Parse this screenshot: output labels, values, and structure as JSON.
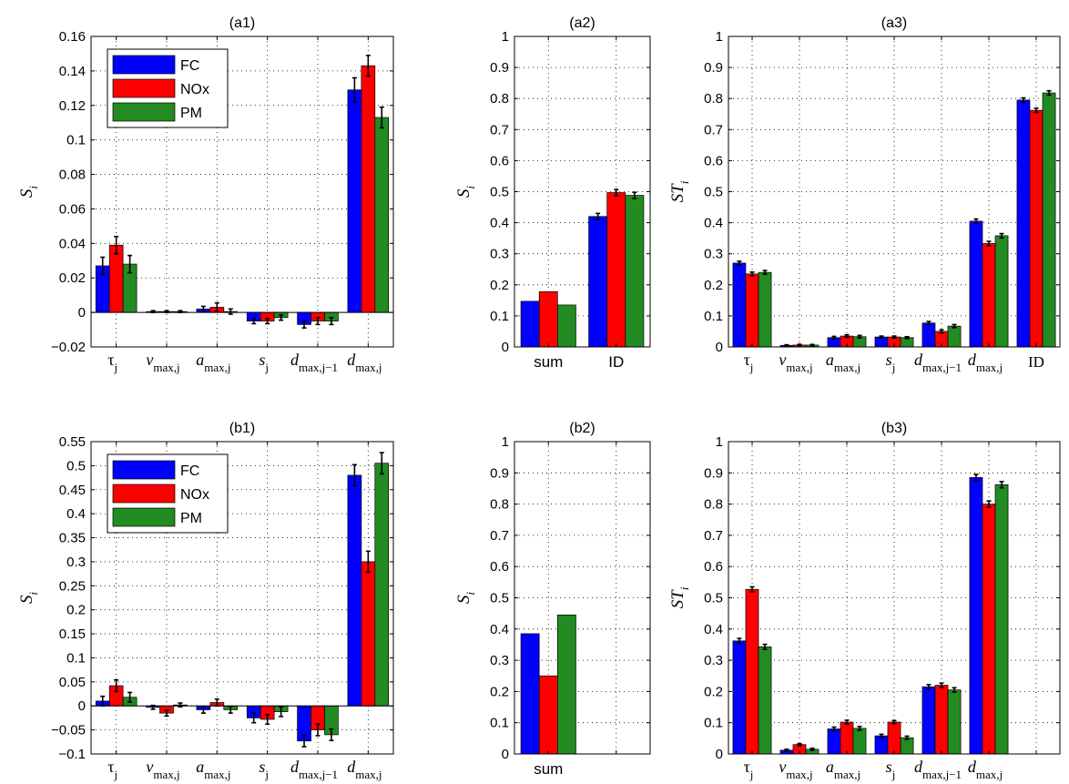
{
  "colors": {
    "FC": "#0000ff",
    "NOx": "#ff0000",
    "PM": "#228b22",
    "error": "#000000"
  },
  "chart_data": [
    {
      "id": "a1",
      "type": "bar",
      "title": "(a1)",
      "ylabel_main": "S",
      "ylabel_sub": "i",
      "ylim": [
        -0.02,
        0.16
      ],
      "yticks": [
        -0.02,
        0,
        0.02,
        0.04,
        0.06,
        0.08,
        0.1,
        0.12,
        0.14,
        0.16
      ],
      "ytick_labels": [
        "−0.02",
        "0",
        "0.02",
        "0.04",
        "0.06",
        "0.08",
        "0.1",
        "0.12",
        "0.14",
        "0.16"
      ],
      "grid": true,
      "legend": {
        "placement": "top-left",
        "entries": [
          "FC",
          "NOx",
          "PM"
        ]
      },
      "categories": [
        {
          "main": "τ",
          "sub": "j",
          "greek": true
        },
        {
          "main": "v",
          "sub": "max,j"
        },
        {
          "main": "a",
          "sub": "max,j"
        },
        {
          "main": "s",
          "sub": "j"
        },
        {
          "main": "d",
          "sub": "max,j−1"
        },
        {
          "main": "d",
          "sub": "max,j"
        }
      ],
      "series": [
        {
          "name": "FC",
          "values": [
            0.027,
            0.0005,
            0.002,
            -0.005,
            -0.007,
            0.129
          ],
          "errors": [
            0.005,
            0.0005,
            0.0015,
            0.0015,
            0.002,
            0.007
          ]
        },
        {
          "name": "NOx",
          "values": [
            0.039,
            0.0005,
            0.003,
            -0.005,
            -0.005,
            0.143
          ],
          "errors": [
            0.005,
            0.0005,
            0.0025,
            0.0015,
            0.002,
            0.006
          ]
        },
        {
          "name": "PM",
          "values": [
            0.028,
            0.0005,
            0.0005,
            -0.003,
            -0.005,
            0.113
          ],
          "errors": [
            0.005,
            0.0005,
            0.0015,
            0.0015,
            0.002,
            0.006
          ]
        }
      ]
    },
    {
      "id": "a2",
      "type": "bar",
      "title": "(a2)",
      "ylabel_main": "S",
      "ylabel_sub": "i",
      "ylim": [
        0,
        1
      ],
      "yticks": [
        0,
        0.1,
        0.2,
        0.3,
        0.4,
        0.5,
        0.6,
        0.7,
        0.8,
        0.9,
        1
      ],
      "ytick_labels": [
        "0",
        "0.1",
        "0.2",
        "0.3",
        "0.4",
        "0.5",
        "0.6",
        "0.7",
        "0.8",
        "0.9",
        "1"
      ],
      "grid": true,
      "categories": [
        {
          "text": "sum"
        },
        {
          "text": "ID"
        }
      ],
      "series": [
        {
          "name": "FC",
          "values": [
            0.147,
            0.42
          ],
          "errors": [
            null,
            0.01
          ]
        },
        {
          "name": "NOx",
          "values": [
            0.178,
            0.497
          ],
          "errors": [
            null,
            0.01
          ]
        },
        {
          "name": "PM",
          "values": [
            0.135,
            0.488
          ],
          "errors": [
            null,
            0.01
          ]
        }
      ]
    },
    {
      "id": "a3",
      "type": "bar",
      "title": "(a3)",
      "ylabel_main": "ST",
      "ylabel_sub": "i",
      "ylim": [
        0,
        1
      ],
      "yticks": [
        0,
        0.1,
        0.2,
        0.3,
        0.4,
        0.5,
        0.6,
        0.7,
        0.8,
        0.9,
        1
      ],
      "ytick_labels": [
        "0",
        "0.1",
        "0.2",
        "0.3",
        "0.4",
        "0.5",
        "0.6",
        "0.7",
        "0.8",
        "0.9",
        "1"
      ],
      "grid": true,
      "categories": [
        {
          "main": "τ",
          "sub": "j",
          "greek": true
        },
        {
          "main": "v",
          "sub": "max,j"
        },
        {
          "main": "a",
          "sub": "max,j"
        },
        {
          "main": "s",
          "sub": "j"
        },
        {
          "main": "d",
          "sub": "max,j−1"
        },
        {
          "main": "d",
          "sub": "max,j"
        },
        {
          "text": "ID",
          "serif": true
        }
      ],
      "series": [
        {
          "name": "FC",
          "values": [
            0.27,
            0.005,
            0.03,
            0.032,
            0.077,
            0.405,
            0.795
          ],
          "errors": [
            0.006,
            0.002,
            0.004,
            0.003,
            0.005,
            0.007,
            0.007
          ]
        },
        {
          "name": "NOx",
          "values": [
            0.235,
            0.006,
            0.035,
            0.032,
            0.05,
            0.333,
            0.762
          ],
          "errors": [
            0.006,
            0.002,
            0.004,
            0.003,
            0.005,
            0.007,
            0.007
          ]
        },
        {
          "name": "PM",
          "values": [
            0.24,
            0.006,
            0.033,
            0.03,
            0.067,
            0.358,
            0.818
          ],
          "errors": [
            0.006,
            0.002,
            0.004,
            0.003,
            0.005,
            0.007,
            0.007
          ]
        }
      ]
    },
    {
      "id": "b1",
      "type": "bar",
      "title": "(b1)",
      "ylabel_main": "S",
      "ylabel_sub": "i",
      "ylim": [
        -0.1,
        0.55
      ],
      "yticks": [
        -0.1,
        -0.05,
        0,
        0.05,
        0.1,
        0.15,
        0.2,
        0.25,
        0.3,
        0.35,
        0.4,
        0.45,
        0.5,
        0.55
      ],
      "ytick_labels": [
        "−0.1",
        "−0.05",
        "0",
        "0.05",
        "0.1",
        "0.15",
        "0.2",
        "0.25",
        "0.3",
        "0.35",
        "0.4",
        "0.45",
        "0.5",
        "0.55"
      ],
      "grid": true,
      "legend": {
        "placement": "top-left",
        "entries": [
          "FC",
          "NOx",
          "PM"
        ]
      },
      "categories": [
        {
          "main": "τ",
          "sub": "j",
          "greek": true
        },
        {
          "main": "v",
          "sub": "max,j"
        },
        {
          "main": "a",
          "sub": "max,j"
        },
        {
          "main": "s",
          "sub": "j"
        },
        {
          "main": "d",
          "sub": "max,j−1"
        },
        {
          "main": "d",
          "sub": "max,j"
        }
      ],
      "series": [
        {
          "name": "FC",
          "values": [
            0.01,
            -0.003,
            -0.008,
            -0.025,
            -0.073,
            0.48
          ],
          "errors": [
            0.01,
            0.004,
            0.007,
            0.01,
            0.012,
            0.022
          ]
        },
        {
          "name": "NOx",
          "values": [
            0.042,
            -0.015,
            0.007,
            -0.028,
            -0.05,
            0.3
          ],
          "errors": [
            0.012,
            0.006,
            0.007,
            0.01,
            0.012,
            0.022
          ]
        },
        {
          "name": "PM",
          "values": [
            0.018,
            0.002,
            -0.008,
            -0.012,
            -0.06,
            0.505
          ],
          "errors": [
            0.01,
            0.004,
            0.007,
            0.01,
            0.012,
            0.022
          ]
        }
      ]
    },
    {
      "id": "b2",
      "type": "bar",
      "title": "(b2)",
      "ylabel_main": "S",
      "ylabel_sub": "i",
      "ylim": [
        0,
        1
      ],
      "yticks": [
        0,
        0.1,
        0.2,
        0.3,
        0.4,
        0.5,
        0.6,
        0.7,
        0.8,
        0.9,
        1
      ],
      "ytick_labels": [
        "0",
        "0.1",
        "0.2",
        "0.3",
        "0.4",
        "0.5",
        "0.6",
        "0.7",
        "0.8",
        "0.9",
        "1"
      ],
      "grid": true,
      "categories": [
        {
          "text": "sum"
        },
        {
          "text": ""
        }
      ],
      "series": [
        {
          "name": "FC",
          "values": [
            0.385,
            null
          ],
          "errors": [
            null,
            null
          ]
        },
        {
          "name": "NOx",
          "values": [
            0.25,
            null
          ],
          "errors": [
            null,
            null
          ]
        },
        {
          "name": "PM",
          "values": [
            0.445,
            null
          ],
          "errors": [
            null,
            null
          ]
        }
      ]
    },
    {
      "id": "b3",
      "type": "bar",
      "title": "(b3)",
      "ylabel_main": "ST",
      "ylabel_sub": "i",
      "ylim": [
        0,
        1
      ],
      "yticks": [
        0,
        0.1,
        0.2,
        0.3,
        0.4,
        0.5,
        0.6,
        0.7,
        0.8,
        0.9,
        1
      ],
      "ytick_labels": [
        "0",
        "0.1",
        "0.2",
        "0.3",
        "0.4",
        "0.5",
        "0.6",
        "0.7",
        "0.8",
        "0.9",
        "1"
      ],
      "grid": true,
      "categories": [
        {
          "main": "τ",
          "sub": "j",
          "greek": true
        },
        {
          "main": "v",
          "sub": "max,j"
        },
        {
          "main": "a",
          "sub": "max,j"
        },
        {
          "main": "s",
          "sub": "j"
        },
        {
          "main": "d",
          "sub": "max,j−1"
        },
        {
          "main": "d",
          "sub": "max,j"
        },
        {
          "text": ""
        }
      ],
      "series": [
        {
          "name": "FC",
          "values": [
            0.362,
            0.012,
            0.08,
            0.058,
            0.215,
            0.885,
            null
          ],
          "errors": [
            0.008,
            0.003,
            0.006,
            0.005,
            0.007,
            0.01,
            null
          ]
        },
        {
          "name": "NOx",
          "values": [
            0.527,
            0.03,
            0.102,
            0.102,
            0.22,
            0.8,
            null
          ],
          "errors": [
            0.008,
            0.003,
            0.006,
            0.005,
            0.007,
            0.01,
            null
          ]
        },
        {
          "name": "PM",
          "values": [
            0.343,
            0.015,
            0.082,
            0.052,
            0.205,
            0.862,
            null
          ],
          "errors": [
            0.008,
            0.003,
            0.006,
            0.005,
            0.007,
            0.01,
            null
          ]
        }
      ]
    }
  ]
}
